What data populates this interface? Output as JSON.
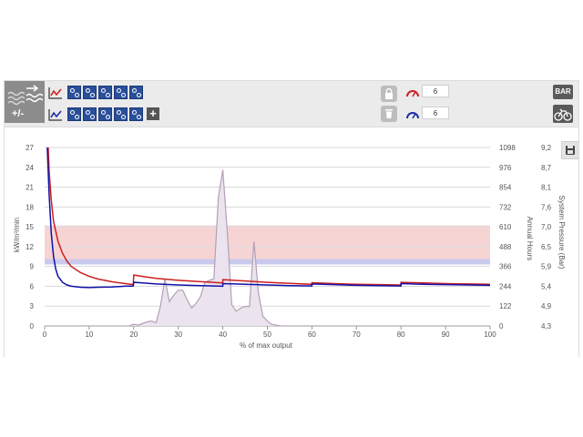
{
  "toolbar": {
    "mode_label": "+/-",
    "power_count_1": "6",
    "power_count_2": "6",
    "units_button": "BAR",
    "colors": {
      "row1_line": "#cc2222",
      "row2_line": "#1a2fa8",
      "config_button": "#2a4f9a"
    },
    "icons": [
      "wave-lines-icon",
      "flow-arrows-icon",
      "line-chart-red-icon",
      "line-chart-blue-icon",
      "gear-config-icon",
      "plus-icon",
      "lock-icon",
      "trash-icon",
      "gauge-red-icon",
      "gauge-blue-icon",
      "bicycle-icon",
      "save-icon"
    ]
  },
  "chart_data": {
    "type": "line",
    "xlabel": "% of max output",
    "ylabel": "kW/m³/min",
    "y2label": "Annual Hours",
    "y3label": "System Pressure (Bar)",
    "x_ticks": [
      "0",
      "10",
      "20",
      "30",
      "40",
      "50",
      "60",
      "70",
      "80",
      "90",
      "100"
    ],
    "y_ticks": [
      "0",
      "3",
      "6",
      "9",
      "12",
      "15",
      "18",
      "21",
      "24",
      "27"
    ],
    "y2_ticks": [
      "0",
      "122",
      "244",
      "366",
      "488",
      "610",
      "732",
      "854",
      "976",
      "1098"
    ],
    "y3_ticks": [
      "4,3",
      "4,9",
      "5,4",
      "5,9",
      "6,5",
      "7,0",
      "7,6",
      "8,1",
      "8,7",
      "9,2"
    ],
    "xlim": [
      0,
      100
    ],
    "ylim": [
      0,
      27
    ],
    "y2lim": [
      0,
      1098
    ],
    "bands": [
      {
        "name": "pressure-band",
        "from": 9.3,
        "to": 15.2,
        "color": "#f6d4d4"
      },
      {
        "name": "target-band",
        "from": 9.3,
        "to": 10.1,
        "color": "#c9c9ee"
      }
    ],
    "series": [
      {
        "color": "#cc1f1f",
        "x": [
          0.8,
          1,
          1.5,
          2,
          3,
          4,
          5,
          6,
          8,
          10,
          12,
          15,
          17,
          19.9,
          20,
          22,
          25,
          30,
          35,
          40,
          40,
          45,
          50,
          55,
          60,
          60,
          65,
          70,
          75,
          80,
          80,
          85,
          90,
          95,
          100
        ],
        "y": [
          27,
          23.5,
          19,
          15.8,
          12.8,
          11,
          9.8,
          9.0,
          8.1,
          7.5,
          7.1,
          6.7,
          6.5,
          6.25,
          7.7,
          7.5,
          7.2,
          6.9,
          6.7,
          6.5,
          7.0,
          6.8,
          6.6,
          6.45,
          6.3,
          6.55,
          6.4,
          6.3,
          6.25,
          6.2,
          6.6,
          6.5,
          6.4,
          6.35,
          6.3
        ]
      },
      {
        "color": "#1111aa",
        "x": [
          0.6,
          1,
          1.5,
          2,
          2.5,
          3,
          4,
          5,
          6,
          8,
          10,
          12,
          15,
          18,
          19.9,
          20,
          22,
          25,
          30,
          35,
          40,
          40,
          45,
          50,
          55,
          60,
          60,
          65,
          70,
          75,
          80,
          80,
          85,
          90,
          95,
          100
        ],
        "y": [
          27,
          20,
          14,
          10.5,
          8.6,
          7.5,
          6.6,
          6.2,
          6.0,
          5.85,
          5.8,
          5.85,
          5.9,
          6.0,
          6.05,
          6.6,
          6.5,
          6.35,
          6.2,
          6.1,
          6.0,
          6.4,
          6.3,
          6.2,
          6.1,
          6.05,
          6.35,
          6.25,
          6.15,
          6.1,
          6.05,
          6.4,
          6.3,
          6.25,
          6.2,
          6.15
        ]
      },
      {
        "color": "#b49fb6",
        "fill": "#ebe4ee",
        "axis": "y2",
        "x": [
          19,
          20,
          21,
          22,
          23,
          24,
          25,
          26,
          27,
          28,
          29,
          30,
          31,
          32,
          33,
          34,
          35,
          36,
          37,
          38,
          39,
          40,
          41,
          42,
          43,
          44,
          45,
          46,
          47,
          48,
          49,
          50,
          51,
          52,
          53
        ],
        "y": [
          0,
          10,
          5,
          15,
          25,
          30,
          20,
          120,
          290,
          150,
          190,
          220,
          220,
          160,
          110,
          140,
          180,
          270,
          280,
          290,
          790,
          960,
          580,
          130,
          90,
          110,
          120,
          120,
          520,
          200,
          60,
          30,
          10,
          5,
          0
        ]
      }
    ]
  }
}
